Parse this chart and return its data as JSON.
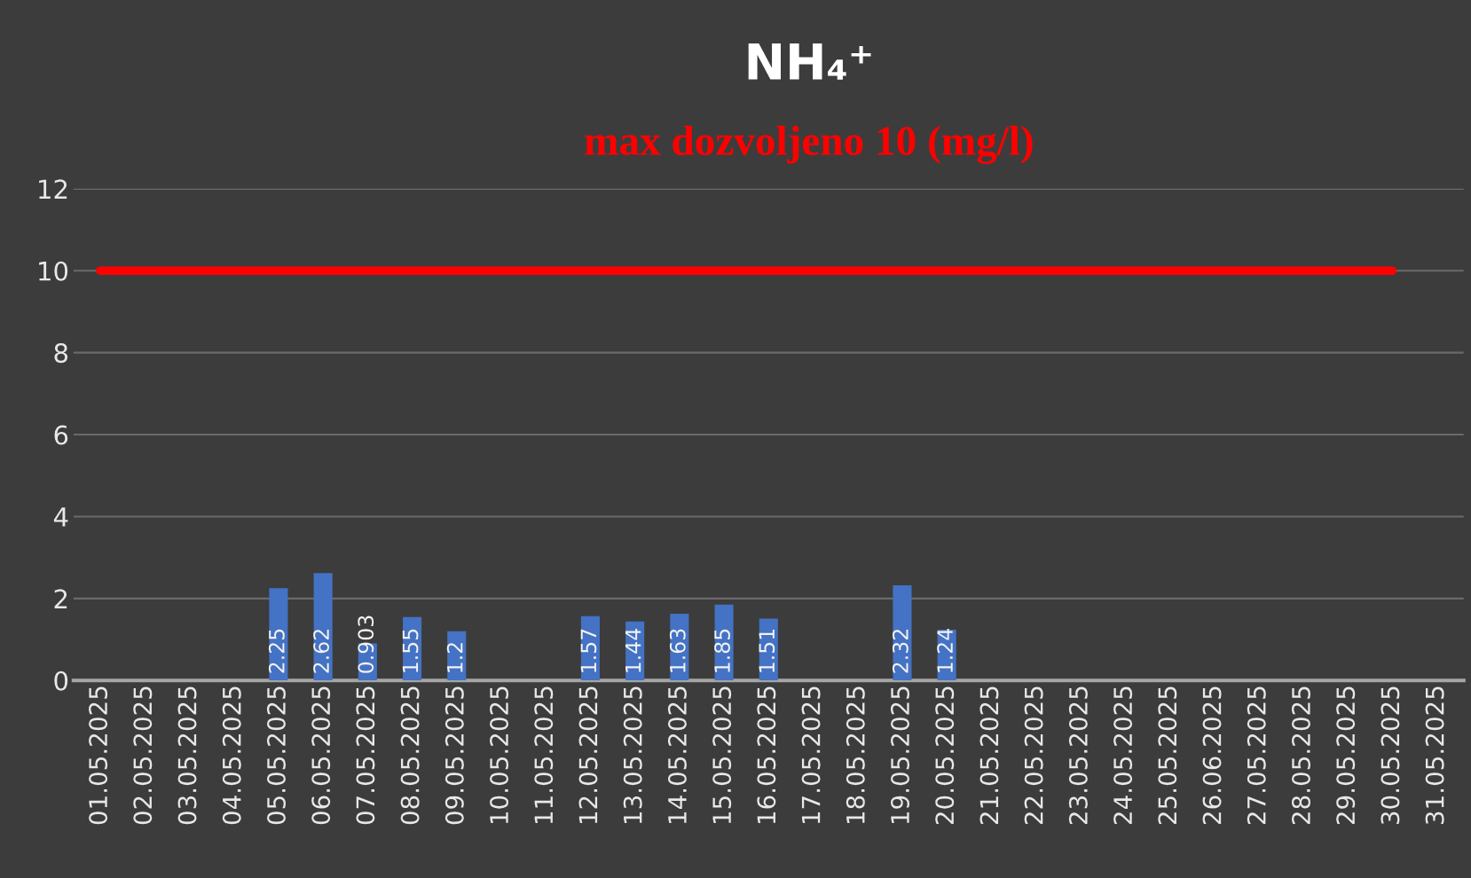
{
  "chart_data": {
    "type": "bar",
    "title": "NH₄⁺",
    "subtitle": "max dozvoljeno 10 (mg/l)",
    "categories": [
      "01.05.2025",
      "02.05.2025",
      "03.05.2025",
      "04.05.2025",
      "05.05.2025",
      "06.05.2025",
      "07.05.2025",
      "08.05.2025",
      "09.05.2025",
      "10.05.2025",
      "11.05.2025",
      "12.05.2025",
      "13.05.2025",
      "14.05.2025",
      "15.05.2025",
      "16.05.2025",
      "17.05.2025",
      "18.05.2025",
      "19.05.2025",
      "20.05.2025",
      "21.05.2025",
      "22.05.2025",
      "23.05.2025",
      "24.05.2025",
      "25.05.2025",
      "26.06.2025",
      "27.05.2025",
      "28.05.2025",
      "29.05.2025",
      "30.05.2025",
      "31.05.2025"
    ],
    "series": [
      {
        "color": "#4472c4",
        "values": [
          null,
          null,
          null,
          null,
          2.25,
          2.62,
          0.903,
          1.55,
          1.2,
          null,
          null,
          1.57,
          1.44,
          1.63,
          1.85,
          1.51,
          null,
          null,
          2.32,
          1.24,
          null,
          null,
          null,
          null,
          null,
          null,
          null,
          null,
          null,
          null,
          null
        ],
        "value_labels": [
          null,
          null,
          null,
          null,
          "2.25",
          "2.62",
          "0.903",
          "1.55",
          "1.2",
          null,
          null,
          "1.57",
          "1.44",
          "1.63",
          "1.85",
          "1.51",
          null,
          null,
          "2.32",
          "1.24",
          null,
          null,
          null,
          null,
          null,
          null,
          null,
          null,
          null,
          null,
          null
        ]
      },
      {
        "type": "line",
        "color": "#ff0000",
        "values": [
          10,
          10,
          10,
          10,
          10,
          10,
          10,
          10,
          10,
          10,
          10,
          10,
          10,
          10,
          10,
          10,
          10,
          10,
          10,
          10,
          10,
          10,
          10,
          10,
          10,
          10,
          10,
          10,
          10,
          10,
          null
        ]
      }
    ],
    "ylim": [
      0,
      12
    ],
    "yticks": [
      0,
      2,
      4,
      6,
      8,
      10,
      12
    ],
    "grid": "y"
  }
}
